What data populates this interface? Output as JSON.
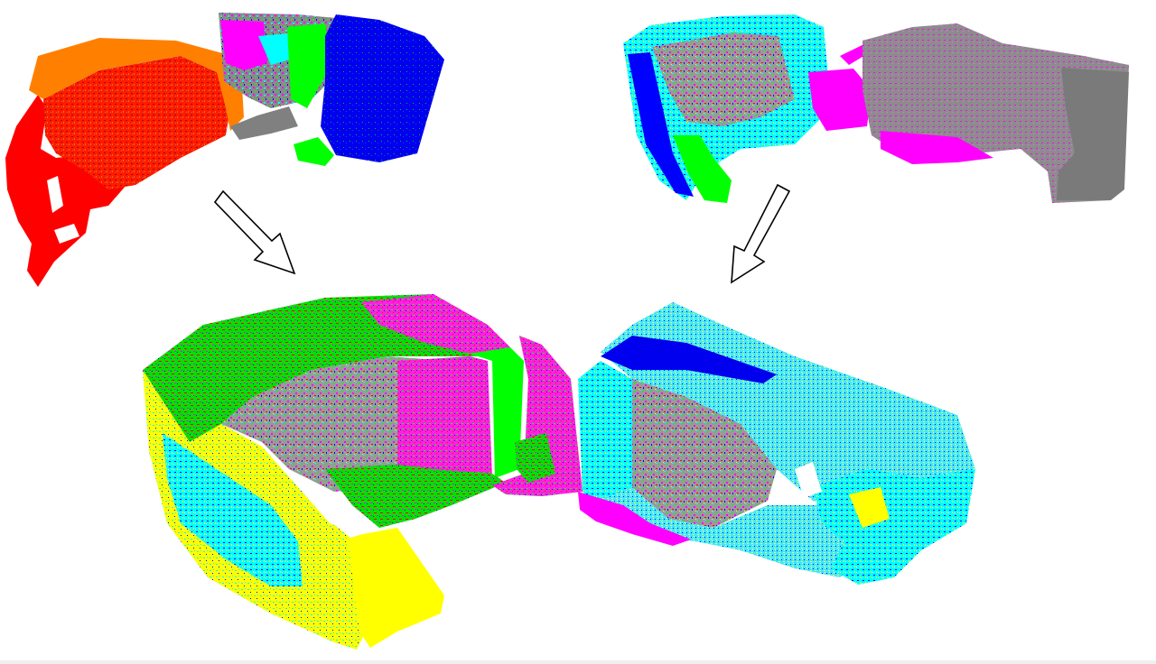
{
  "figure": {
    "panels": [
      {
        "id": "top-left-partial-scan",
        "palette": [
          "#ff0000",
          "#ff8000",
          "#808080",
          "#ff00ff",
          "#00ffff",
          "#00ff00",
          "#0000ff"
        ]
      },
      {
        "id": "top-right-partial-scan",
        "palette": [
          "#00ffff",
          "#00ff00",
          "#0000ff",
          "#ff00ff",
          "#808080"
        ]
      },
      {
        "id": "bottom-merged-reconstruction",
        "palette": [
          "#ffff00",
          "#00ffff",
          "#00ff00",
          "#ff00ff",
          "#0000ff",
          "#ff0000",
          "#808080"
        ]
      }
    ],
    "arrows": [
      {
        "id": "arrow-left",
        "direction": "down-right",
        "stroke": "#000000",
        "fill": "#ffffff"
      },
      {
        "id": "arrow-right",
        "direction": "down-left",
        "stroke": "#000000",
        "fill": "#ffffff"
      }
    ]
  }
}
